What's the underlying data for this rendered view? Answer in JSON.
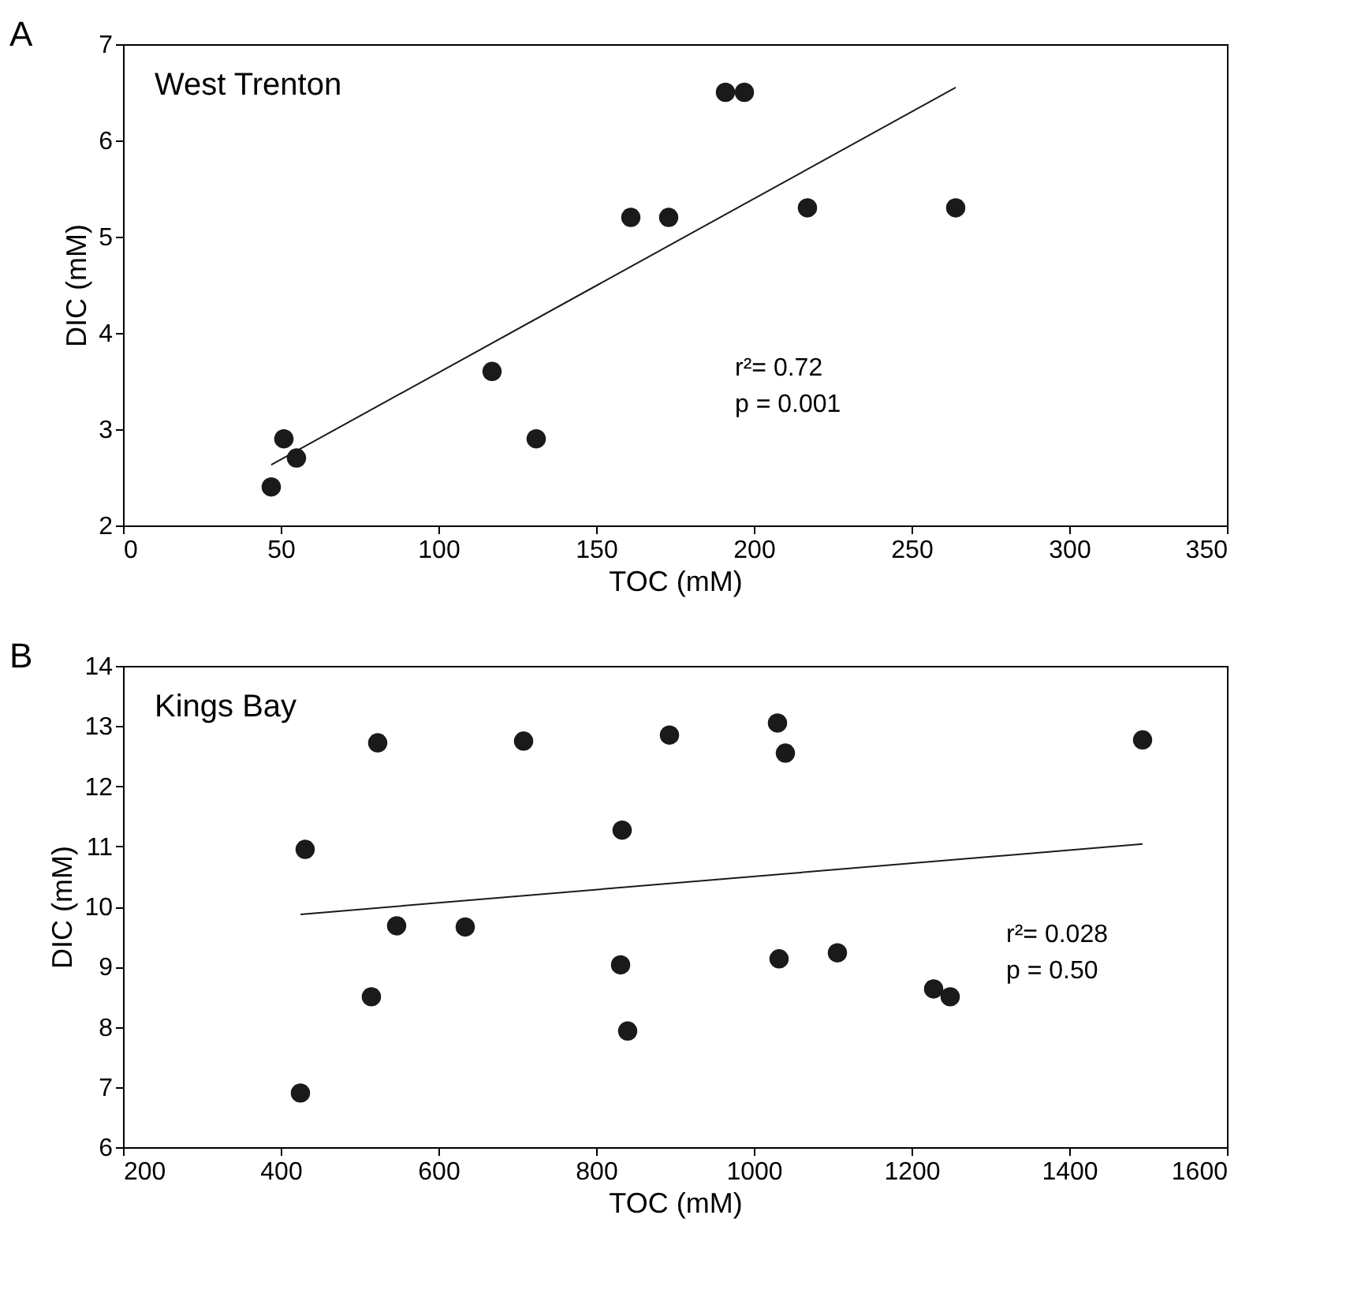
{
  "chart_data": [
    {
      "type": "scatter",
      "title": "A",
      "xlabel": "TOC (mM)",
      "ylabel": "DIC (mM)",
      "xlim": [
        0,
        350
      ],
      "xticks": [
        0,
        50,
        100,
        150,
        200,
        250,
        300,
        350
      ],
      "ylim": [
        2,
        7
      ],
      "yticks": [
        2,
        3,
        4,
        5,
        6,
        7
      ],
      "grid": false,
      "marker": "circle",
      "annotations": [
        "West Trenton",
        "r²= 0.72",
        "p = 0.001"
      ],
      "series": [
        {
          "color": "#1a1a1a",
          "x": [
            47,
            51,
            55,
            117,
            131,
            161,
            173,
            191,
            197,
            217,
            264
          ],
          "values": [
            2.4,
            2.9,
            2.7,
            3.6,
            2.9,
            5.2,
            5.2,
            6.5,
            6.5,
            5.3,
            5.3
          ]
        },
        {
          "type": "line",
          "marker": "none",
          "color": "#1a1a1a",
          "line_style": "solid",
          "x": [
            47,
            264
          ],
          "values": [
            2.63,
            6.55
          ]
        }
      ]
    },
    {
      "type": "scatter",
      "title": "B",
      "xlabel": "TOC (mM)",
      "ylabel": "DIC (mM)",
      "xlim": [
        200,
        1600
      ],
      "xticks": [
        200,
        400,
        600,
        800,
        1000,
        1200,
        1400,
        1600
      ],
      "ylim": [
        6,
        14
      ],
      "yticks": [
        6,
        7,
        8,
        9,
        10,
        11,
        12,
        13,
        14
      ],
      "grid": false,
      "marker": "circle",
      "annotations": [
        "Kings Bay",
        "r²= 0.028",
        "p = 0.50"
      ],
      "series": [
        {
          "color": "#1a1a1a",
          "x": [
            425,
            431,
            515,
            523,
            547,
            634,
            708,
            831,
            833,
            840,
            893,
            1030,
            1032,
            1040,
            1106,
            1228,
            1249,
            1493
          ],
          "values": [
            6.9,
            10.95,
            8.5,
            12.72,
            9.68,
            9.66,
            12.75,
            9.03,
            11.27,
            7.93,
            12.85,
            13.05,
            9.13,
            12.55,
            9.23,
            8.63,
            8.5,
            12.77
          ]
        },
        {
          "type": "line",
          "marker": "none",
          "color": "#1a1a1a",
          "line_style": "solid",
          "x": [
            425,
            1493
          ],
          "values": [
            9.87,
            11.04
          ]
        }
      ]
    }
  ]
}
